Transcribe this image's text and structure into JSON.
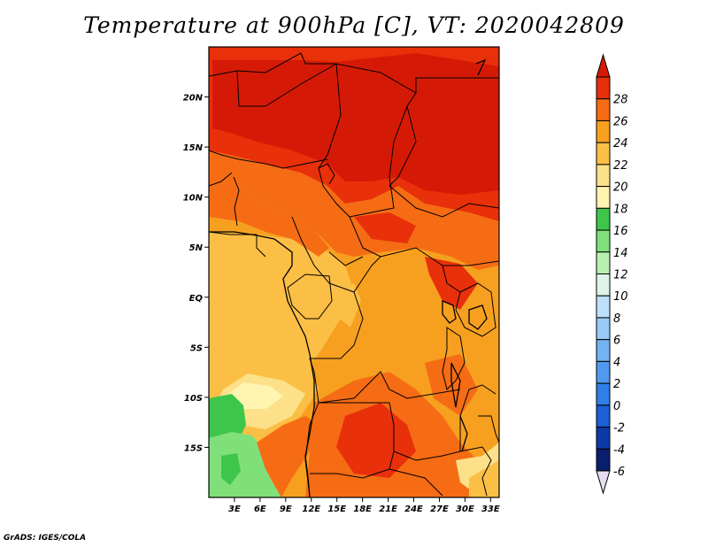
{
  "title": "Temperature at 900hPa [C], VT: 2020042809",
  "credit": "GrADS: IGES/COLA",
  "map": {
    "lon_range": [
      0,
      34
    ],
    "lat_range": [
      -20,
      25
    ],
    "x_ticks": [
      {
        "value": 3,
        "label": "3E"
      },
      {
        "value": 6,
        "label": "6E"
      },
      {
        "value": 9,
        "label": "9E"
      },
      {
        "value": 12,
        "label": "12E"
      },
      {
        "value": 15,
        "label": "15E"
      },
      {
        "value": 18,
        "label": "18E"
      },
      {
        "value": 21,
        "label": "21E"
      },
      {
        "value": 24,
        "label": "24E"
      },
      {
        "value": 27,
        "label": "27E"
      },
      {
        "value": 30,
        "label": "30E"
      },
      {
        "value": 33,
        "label": "33E"
      }
    ],
    "y_ticks": [
      {
        "value": 20,
        "label": "20N"
      },
      {
        "value": 15,
        "label": "15N"
      },
      {
        "value": 10,
        "label": "10N"
      },
      {
        "value": 5,
        "label": "5N"
      },
      {
        "value": 0,
        "label": "EQ"
      },
      {
        "value": -5,
        "label": "5S"
      },
      {
        "value": -10,
        "label": "10S"
      },
      {
        "value": -15,
        "label": "15S"
      }
    ]
  },
  "colorbar": {
    "levels": [
      "-6",
      "-4",
      "-2",
      "0",
      "2",
      "4",
      "6",
      "8",
      "10",
      "12",
      "14",
      "16",
      "18",
      "20",
      "22",
      "24",
      "26",
      "28"
    ],
    "colors": [
      "#0a1e6e",
      "#0e3aa8",
      "#1c5fd6",
      "#2f7fe6",
      "#4f9aee",
      "#73b3f3",
      "#98cbf6",
      "#bfe0fa",
      "#dff3e8",
      "#b8f0b0",
      "#7fe07a",
      "#3ec64a",
      "#fff5b0",
      "#fde08a",
      "#fbbf45",
      "#f7a020",
      "#f56c14",
      "#e8300a",
      "#d41a06"
    ],
    "below_color": "#e6dcf2"
  }
}
